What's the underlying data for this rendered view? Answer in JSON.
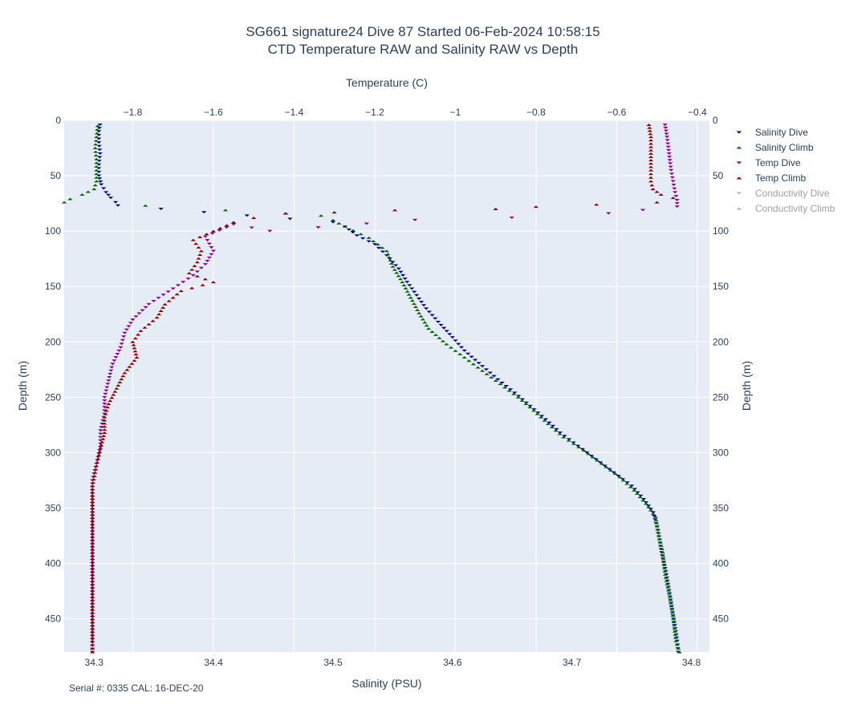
{
  "chart_data": {
    "type": "scatter",
    "title": "SG661 signature24 Dive 87 Started 06-Feb-2024 10:58:15",
    "subtitle": "CTD Temperature RAW and Salinity RAW vs Depth",
    "x_bottom": {
      "label": "Salinity (PSU)",
      "range": [
        34.275,
        34.815
      ],
      "ticks": [
        34.3,
        34.4,
        34.5,
        34.6,
        34.7,
        34.8
      ]
    },
    "x_top": {
      "label": "Temperature (C)",
      "range": [
        -1.97,
        -0.37
      ],
      "ticks": [
        -1.8,
        -1.6,
        -1.4,
        -1.2,
        -1,
        -0.8,
        -0.6,
        -0.4
      ],
      "tick_labels": [
        "−1.8",
        "−1.6",
        "−1.4",
        "−1.2",
        "−1",
        "−0.8",
        "−0.6",
        "−0.4"
      ]
    },
    "y": {
      "label_left": "Depth (m)",
      "label_right": "Depth (m)",
      "range": [
        0,
        480
      ],
      "reversed": true,
      "ticks": [
        0,
        50,
        100,
        150,
        200,
        250,
        300,
        350,
        400,
        450
      ]
    },
    "grid": true,
    "legend_position": "top-right",
    "footnote": "Serial #: 0335  CAL: 16-DEC-20",
    "series": [
      {
        "name": "Salinity Dive",
        "axis": "salinity",
        "marker": "triangle-down",
        "color": "#00008b",
        "visible": true,
        "points": [
          [
            34.305,
            4
          ],
          [
            34.304,
            10
          ],
          [
            34.304,
            20
          ],
          [
            34.305,
            30
          ],
          [
            34.304,
            40
          ],
          [
            34.304,
            50
          ],
          [
            34.306,
            58
          ],
          [
            34.31,
            65
          ],
          [
            34.314,
            70
          ],
          [
            34.318,
            74
          ],
          [
            34.32,
            77
          ],
          [
            34.5,
            92
          ],
          [
            34.51,
            96
          ],
          [
            34.52,
            104
          ],
          [
            34.535,
            112
          ],
          [
            34.545,
            122
          ],
          [
            34.555,
            134
          ],
          [
            34.562,
            146
          ],
          [
            34.57,
            158
          ],
          [
            34.578,
            170
          ],
          [
            34.588,
            182
          ],
          [
            34.6,
            196
          ],
          [
            34.61,
            208
          ],
          [
            34.625,
            222
          ],
          [
            34.638,
            234
          ],
          [
            34.652,
            246
          ],
          [
            34.665,
            258
          ],
          [
            34.678,
            270
          ],
          [
            34.69,
            282
          ],
          [
            34.705,
            294
          ],
          [
            34.72,
            306
          ],
          [
            34.735,
            318
          ],
          [
            34.75,
            330
          ],
          [
            34.76,
            342
          ],
          [
            34.768,
            354
          ],
          [
            34.772,
            370
          ],
          [
            34.775,
            390
          ],
          [
            34.779,
            410
          ],
          [
            34.782,
            430
          ],
          [
            34.785,
            450
          ],
          [
            34.788,
            470
          ],
          [
            34.789,
            480
          ]
        ]
      },
      {
        "name": "Salinity Climb",
        "axis": "salinity",
        "marker": "triangle-up",
        "color": "#006400",
        "visible": true,
        "points": [
          [
            34.303,
            5
          ],
          [
            34.302,
            15
          ],
          [
            34.301,
            25
          ],
          [
            34.302,
            35
          ],
          [
            34.302,
            45
          ],
          [
            34.302,
            55
          ],
          [
            34.3,
            62
          ],
          [
            34.29,
            67
          ],
          [
            34.28,
            71
          ],
          [
            34.275,
            74
          ],
          [
            34.343,
            77
          ],
          [
            34.41,
            81
          ],
          [
            34.46,
            84
          ],
          [
            34.49,
            86
          ],
          [
            34.5,
            90
          ],
          [
            34.51,
            96
          ],
          [
            34.53,
            106
          ],
          [
            34.545,
            118
          ],
          [
            34.55,
            132
          ],
          [
            34.558,
            146
          ],
          [
            34.565,
            160
          ],
          [
            34.572,
            174
          ],
          [
            34.58,
            188
          ],
          [
            34.595,
            202
          ],
          [
            34.61,
            214
          ],
          [
            34.625,
            226
          ],
          [
            34.64,
            238
          ],
          [
            34.655,
            250
          ],
          [
            34.668,
            262
          ],
          [
            34.68,
            274
          ],
          [
            34.693,
            286
          ],
          [
            34.71,
            298
          ],
          [
            34.725,
            310
          ],
          [
            34.74,
            322
          ],
          [
            34.752,
            334
          ],
          [
            34.762,
            346
          ],
          [
            34.77,
            358
          ],
          [
            34.772,
            372
          ],
          [
            34.776,
            390
          ],
          [
            34.778,
            410
          ],
          [
            34.782,
            430
          ],
          [
            34.785,
            450
          ],
          [
            34.787,
            470
          ],
          [
            34.79,
            480
          ]
        ]
      },
      {
        "name": "Temp Dive",
        "axis": "temperature",
        "marker": "triangle-down",
        "color": "#8b008b",
        "visible": true,
        "points": [
          [
            -0.48,
            4
          ],
          [
            -0.475,
            15
          ],
          [
            -0.47,
            30
          ],
          [
            -0.465,
            45
          ],
          [
            -0.46,
            55
          ],
          [
            -0.455,
            65
          ],
          [
            -0.45,
            72
          ],
          [
            -0.45,
            78
          ],
          [
            -0.62,
            84
          ],
          [
            -0.86,
            88
          ],
          [
            -1.1,
            90
          ],
          [
            -1.46,
            100
          ],
          [
            -1.55,
            94
          ],
          [
            -1.62,
            105
          ],
          [
            -1.6,
            118
          ],
          [
            -1.62,
            130
          ],
          [
            -1.65,
            140
          ],
          [
            -1.7,
            152
          ],
          [
            -1.76,
            166
          ],
          [
            -1.8,
            180
          ],
          [
            -1.82,
            192
          ],
          [
            -1.83,
            205
          ],
          [
            -1.85,
            220
          ],
          [
            -1.86,
            235
          ],
          [
            -1.87,
            250
          ],
          [
            -1.87,
            265
          ],
          [
            -1.88,
            280
          ],
          [
            -1.88,
            295
          ],
          [
            -1.89,
            310
          ],
          [
            -1.9,
            325
          ],
          [
            -1.9,
            340
          ],
          [
            -1.9,
            360
          ],
          [
            -1.9,
            380
          ],
          [
            -1.9,
            400
          ],
          [
            -1.9,
            420
          ],
          [
            -1.9,
            440
          ],
          [
            -1.9,
            460
          ],
          [
            -1.9,
            480
          ]
        ]
      },
      {
        "name": "Temp Climb",
        "axis": "temperature",
        "marker": "triangle-up",
        "color": "#8b0000",
        "visible": true,
        "points": [
          [
            -0.52,
            4
          ],
          [
            -0.515,
            15
          ],
          [
            -0.515,
            30
          ],
          [
            -0.515,
            45
          ],
          [
            -0.515,
            55
          ],
          [
            -0.51,
            62
          ],
          [
            -0.49,
            67
          ],
          [
            -0.46,
            70
          ],
          [
            -0.5,
            74
          ],
          [
            -0.65,
            76
          ],
          [
            -0.8,
            78
          ],
          [
            -0.9,
            80
          ],
          [
            -1.15,
            81
          ],
          [
            -1.3,
            83
          ],
          [
            -1.42,
            84
          ],
          [
            -1.5,
            88
          ],
          [
            -1.55,
            92
          ],
          [
            -1.6,
            100
          ],
          [
            -1.65,
            108
          ],
          [
            -1.63,
            118
          ],
          [
            -1.64,
            128
          ],
          [
            -1.66,
            138
          ],
          [
            -1.6,
            146
          ],
          [
            -1.68,
            154
          ],
          [
            -1.72,
            166
          ],
          [
            -1.74,
            178
          ],
          [
            -1.78,
            190
          ],
          [
            -1.8,
            200
          ],
          [
            -1.79,
            214
          ],
          [
            -1.82,
            228
          ],
          [
            -1.84,
            242
          ],
          [
            -1.86,
            256
          ],
          [
            -1.87,
            268
          ],
          [
            -1.87,
            282
          ],
          [
            -1.88,
            296
          ],
          [
            -1.89,
            312
          ],
          [
            -1.9,
            330
          ],
          [
            -1.9,
            350
          ],
          [
            -1.9,
            370
          ],
          [
            -1.9,
            390
          ],
          [
            -1.9,
            410
          ],
          [
            -1.9,
            430
          ],
          [
            -1.9,
            450
          ],
          [
            -1.9,
            470
          ],
          [
            -1.9,
            480
          ]
        ]
      },
      {
        "name": "Conductivity Dive",
        "marker": "triangle-down",
        "color": "#b4b4b4",
        "visible": false,
        "points": []
      },
      {
        "name": "Conductivity Climb",
        "marker": "triangle-up",
        "color": "#b4b4b4",
        "visible": false,
        "points": []
      }
    ]
  }
}
